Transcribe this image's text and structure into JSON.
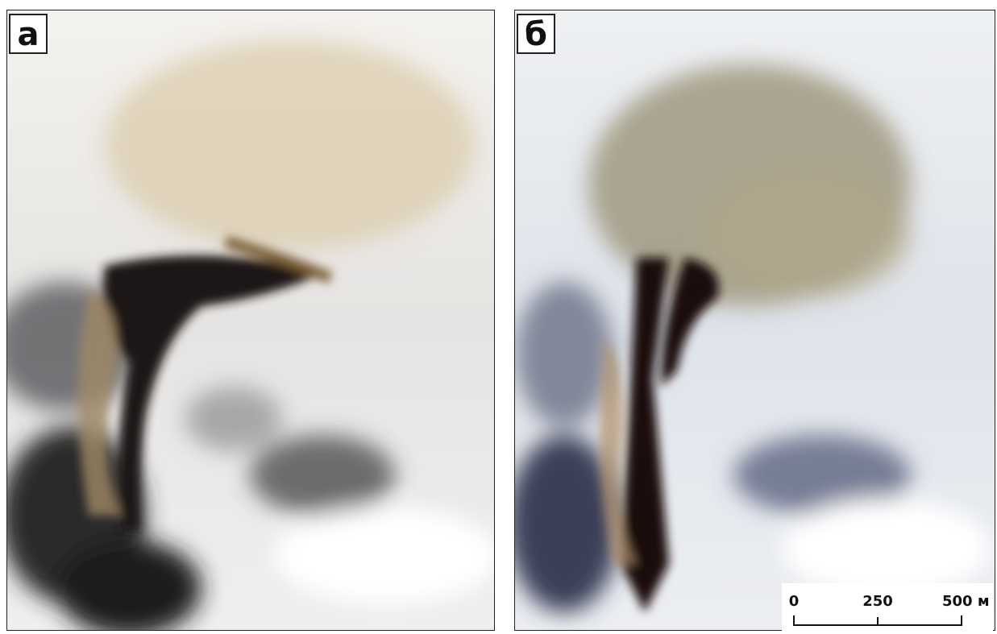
{
  "panels": [
    {
      "label": "а"
    },
    {
      "label": "б"
    }
  ],
  "scale_bar": {
    "labels": [
      "0",
      "250",
      "500 м"
    ]
  }
}
